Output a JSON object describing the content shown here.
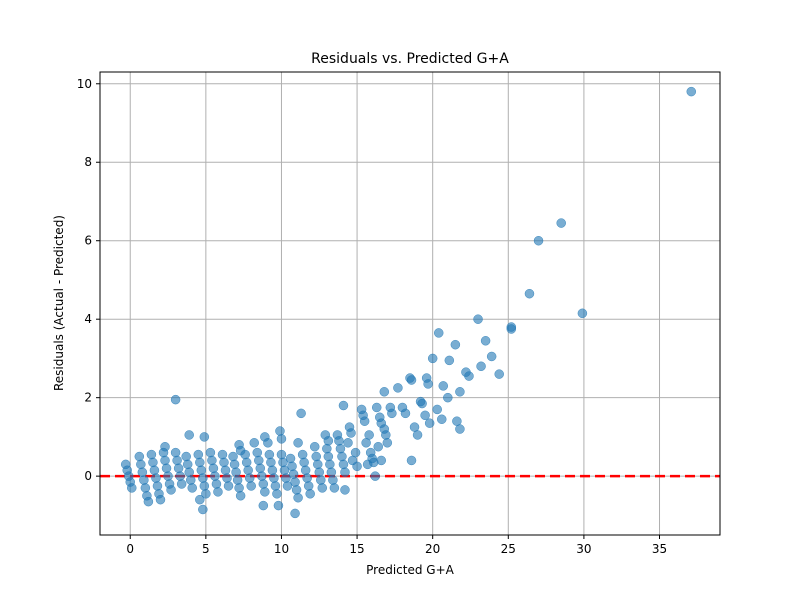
{
  "chart_data": {
    "type": "scatter",
    "title": "Residuals vs. Predicted G+A",
    "xlabel": "Predicted G+A",
    "ylabel": "Residuals (Actual - Predicted)",
    "xlim": [
      -2,
      39
    ],
    "ylim": [
      -1.5,
      10.3
    ],
    "xticks": [
      0,
      5,
      10,
      15,
      20,
      25,
      30,
      35
    ],
    "yticks": [
      0,
      2,
      4,
      6,
      8,
      10
    ],
    "grid": true,
    "point_color": "#1f77b4",
    "reference_line": {
      "y": 0,
      "color": "#ff0000",
      "style": "dashed"
    },
    "series": [
      {
        "points": [
          [
            -0.3,
            0.3
          ],
          [
            -0.2,
            0.15
          ],
          [
            -0.1,
            0.0
          ],
          [
            0.0,
            -0.15
          ],
          [
            0.1,
            -0.3
          ],
          [
            0.6,
            0.5
          ],
          [
            0.7,
            0.3
          ],
          [
            0.8,
            0.1
          ],
          [
            0.9,
            -0.1
          ],
          [
            1.0,
            -0.3
          ],
          [
            1.1,
            -0.5
          ],
          [
            1.2,
            -0.65
          ],
          [
            1.4,
            0.55
          ],
          [
            1.5,
            0.35
          ],
          [
            1.6,
            0.15
          ],
          [
            1.7,
            -0.05
          ],
          [
            1.8,
            -0.25
          ],
          [
            1.9,
            -0.45
          ],
          [
            2.0,
            -0.6
          ],
          [
            2.2,
            0.6
          ],
          [
            2.3,
            0.4
          ],
          [
            2.4,
            0.2
          ],
          [
            2.5,
            0.0
          ],
          [
            2.6,
            -0.2
          ],
          [
            2.7,
            -0.35
          ],
          [
            3.0,
            0.6
          ],
          [
            3.1,
            0.4
          ],
          [
            3.2,
            0.2
          ],
          [
            3.3,
            0.0
          ],
          [
            3.4,
            -0.2
          ],
          [
            2.3,
            0.75
          ],
          [
            3.0,
            1.95
          ],
          [
            3.9,
            1.05
          ],
          [
            3.7,
            0.5
          ],
          [
            3.8,
            0.3
          ],
          [
            3.9,
            0.1
          ],
          [
            4.0,
            -0.1
          ],
          [
            4.1,
            -0.3
          ],
          [
            4.5,
            0.55
          ],
          [
            4.6,
            0.35
          ],
          [
            4.7,
            0.15
          ],
          [
            4.8,
            -0.05
          ],
          [
            4.9,
            -0.25
          ],
          [
            5.0,
            -0.45
          ],
          [
            4.6,
            -0.6
          ],
          [
            4.8,
            -0.85
          ],
          [
            4.9,
            1.0
          ],
          [
            5.3,
            0.6
          ],
          [
            5.4,
            0.4
          ],
          [
            5.5,
            0.2
          ],
          [
            5.6,
            0.0
          ],
          [
            5.7,
            -0.2
          ],
          [
            5.8,
            -0.4
          ],
          [
            6.1,
            0.55
          ],
          [
            6.2,
            0.35
          ],
          [
            6.3,
            0.15
          ],
          [
            6.4,
            -0.05
          ],
          [
            6.5,
            -0.25
          ],
          [
            6.8,
            0.5
          ],
          [
            6.9,
            0.3
          ],
          [
            7.0,
            0.1
          ],
          [
            7.1,
            -0.1
          ],
          [
            7.2,
            -0.3
          ],
          [
            7.3,
            -0.5
          ],
          [
            7.2,
            0.8
          ],
          [
            7.3,
            0.65
          ],
          [
            7.6,
            0.55
          ],
          [
            7.7,
            0.35
          ],
          [
            7.8,
            0.15
          ],
          [
            7.9,
            -0.05
          ],
          [
            8.0,
            -0.25
          ],
          [
            8.2,
            0.85
          ],
          [
            8.4,
            0.6
          ],
          [
            8.5,
            0.4
          ],
          [
            8.6,
            0.2
          ],
          [
            8.7,
            0.0
          ],
          [
            8.8,
            -0.2
          ],
          [
            8.9,
            -0.4
          ],
          [
            8.8,
            -0.75
          ],
          [
            8.9,
            1.0
          ],
          [
            9.1,
            0.85
          ],
          [
            9.2,
            0.55
          ],
          [
            9.3,
            0.35
          ],
          [
            9.4,
            0.15
          ],
          [
            9.5,
            -0.05
          ],
          [
            9.6,
            -0.25
          ],
          [
            9.7,
            -0.45
          ],
          [
            9.8,
            -0.75
          ],
          [
            9.9,
            1.15
          ],
          [
            10.0,
            0.95
          ],
          [
            10.0,
            0.55
          ],
          [
            10.1,
            0.35
          ],
          [
            10.2,
            0.15
          ],
          [
            10.3,
            -0.05
          ],
          [
            10.4,
            -0.25
          ],
          [
            10.6,
            0.45
          ],
          [
            10.7,
            0.25
          ],
          [
            10.8,
            0.05
          ],
          [
            10.9,
            -0.15
          ],
          [
            11.0,
            -0.35
          ],
          [
            11.1,
            -0.55
          ],
          [
            10.9,
            -0.95
          ],
          [
            11.1,
            0.85
          ],
          [
            11.4,
            0.55
          ],
          [
            11.5,
            0.35
          ],
          [
            11.6,
            0.15
          ],
          [
            11.7,
            -0.05
          ],
          [
            11.8,
            -0.25
          ],
          [
            11.9,
            -0.45
          ],
          [
            11.3,
            1.6
          ],
          [
            12.2,
            0.75
          ],
          [
            12.3,
            0.5
          ],
          [
            12.4,
            0.3
          ],
          [
            12.5,
            0.1
          ],
          [
            12.6,
            -0.1
          ],
          [
            12.7,
            -0.3
          ],
          [
            12.9,
            1.05
          ],
          [
            13.1,
            0.9
          ],
          [
            13.0,
            0.7
          ],
          [
            13.1,
            0.5
          ],
          [
            13.2,
            0.3
          ],
          [
            13.3,
            0.1
          ],
          [
            13.4,
            -0.1
          ],
          [
            13.5,
            -0.3
          ],
          [
            13.7,
            1.05
          ],
          [
            13.8,
            0.9
          ],
          [
            13.9,
            0.7
          ],
          [
            14.0,
            0.5
          ],
          [
            14.1,
            0.3
          ],
          [
            14.2,
            0.1
          ],
          [
            14.1,
            1.8
          ],
          [
            14.2,
            -0.35
          ],
          [
            14.4,
            0.85
          ],
          [
            14.5,
            1.25
          ],
          [
            14.6,
            1.1
          ],
          [
            14.7,
            0.4
          ],
          [
            14.9,
            0.6
          ],
          [
            15.0,
            0.25
          ],
          [
            15.3,
            1.7
          ],
          [
            15.4,
            1.55
          ],
          [
            15.5,
            1.4
          ],
          [
            15.6,
            0.85
          ],
          [
            15.8,
            1.05
          ],
          [
            15.9,
            0.6
          ],
          [
            16.1,
            0.35
          ],
          [
            15.7,
            0.3
          ],
          [
            16.2,
            0.0
          ],
          [
            16.0,
            0.45
          ],
          [
            16.3,
            1.75
          ],
          [
            16.5,
            1.5
          ],
          [
            16.6,
            1.35
          ],
          [
            16.8,
            1.2
          ],
          [
            16.9,
            1.05
          ],
          [
            17.0,
            0.85
          ],
          [
            16.8,
            2.15
          ],
          [
            17.2,
            1.75
          ],
          [
            17.3,
            1.6
          ],
          [
            16.4,
            0.75
          ],
          [
            16.6,
            0.4
          ],
          [
            17.7,
            2.25
          ],
          [
            18.0,
            1.75
          ],
          [
            18.2,
            1.6
          ],
          [
            18.5,
            2.5
          ],
          [
            18.6,
            2.45
          ],
          [
            18.6,
            0.4
          ],
          [
            18.8,
            1.25
          ],
          [
            19.0,
            1.05
          ],
          [
            19.2,
            1.9
          ],
          [
            19.3,
            1.85
          ],
          [
            19.5,
            1.55
          ],
          [
            19.6,
            2.5
          ],
          [
            19.7,
            2.35
          ],
          [
            19.8,
            1.35
          ],
          [
            20.0,
            3.0
          ],
          [
            20.3,
            1.7
          ],
          [
            20.4,
            3.65
          ],
          [
            20.6,
            1.45
          ],
          [
            20.7,
            2.3
          ],
          [
            21.0,
            2.0
          ],
          [
            21.1,
            2.95
          ],
          [
            21.5,
            3.35
          ],
          [
            21.6,
            1.4
          ],
          [
            21.8,
            2.15
          ],
          [
            21.8,
            1.2
          ],
          [
            22.2,
            2.65
          ],
          [
            22.4,
            2.55
          ],
          [
            23.0,
            4.0
          ],
          [
            23.2,
            2.8
          ],
          [
            23.5,
            3.45
          ],
          [
            23.9,
            3.05
          ],
          [
            24.4,
            2.6
          ],
          [
            25.2,
            3.8
          ],
          [
            25.2,
            3.75
          ],
          [
            26.4,
            4.65
          ],
          [
            27.0,
            6.0
          ],
          [
            28.5,
            6.45
          ],
          [
            29.9,
            4.15
          ],
          [
            37.1,
            9.8
          ]
        ]
      }
    ]
  }
}
